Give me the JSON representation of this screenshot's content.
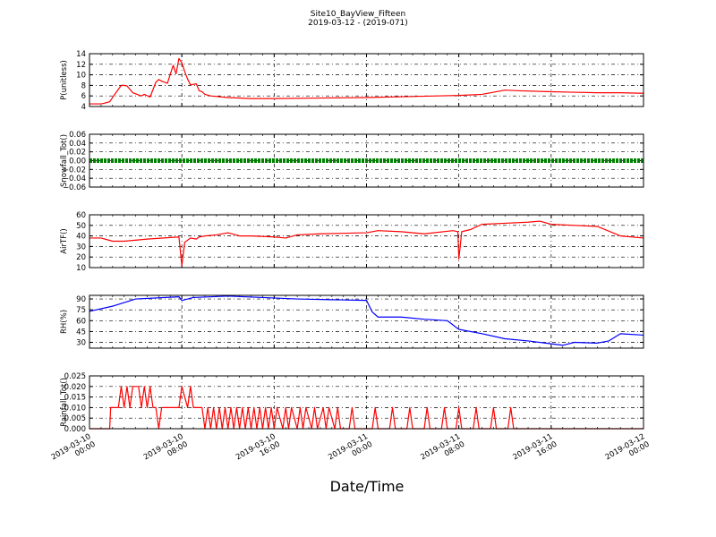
{
  "figure": {
    "title": "Site10_BayView_Fifteen",
    "subtitle": "2019-03-12 - (2019-071)",
    "xlabel": "Date/Time"
  },
  "chart_data": [
    {
      "type": "line",
      "ylabel": "P(unitless)",
      "color": "#ff0000",
      "ylim": [
        4,
        14
      ],
      "yticks": [
        "4",
        "6",
        "8",
        "10",
        "12",
        "14"
      ],
      "xlim": [
        "2019-03-10 00:00",
        "2019-03-12 00:00"
      ],
      "grid": true,
      "series": [
        {
          "x": [
            "2019-03-10 00:00",
            "2019-03-10 01:00",
            "2019-03-10 01:15",
            "2019-03-10 01:45",
            "2019-03-10 02:15",
            "2019-03-10 02:45",
            "2019-03-10 03:00",
            "2019-03-10 03:15",
            "2019-03-10 03:45",
            "2019-03-10 04:15",
            "2019-03-10 04:30",
            "2019-03-10 04:45",
            "2019-03-10 05:15",
            "2019-03-10 05:45",
            "2019-03-10 06:00",
            "2019-03-10 06:15",
            "2019-03-10 06:45",
            "2019-03-10 07:15",
            "2019-03-10 07:30",
            "2019-03-10 07:45",
            "2019-03-10 08:00",
            "2019-03-10 08:15",
            "2019-03-10 08:30",
            "2019-03-10 08:45",
            "2019-03-10 09:15",
            "2019-03-10 09:30",
            "2019-03-10 09:45",
            "2019-03-10 10:00",
            "2019-03-10 10:30",
            "2019-03-10 11:00",
            "2019-03-10 12:00",
            "2019-03-10 14:00",
            "2019-03-10 16:00",
            "2019-03-10 20:00",
            "2019-03-11 00:00",
            "2019-03-11 04:00",
            "2019-03-11 08:00",
            "2019-03-11 10:00",
            "2019-03-11 11:00",
            "2019-03-11 12:00",
            "2019-03-11 13:00",
            "2019-03-11 16:00",
            "2019-03-11 20:00",
            "2019-03-11 22:00",
            "2019-03-12 00:00"
          ],
          "y": [
            4.5,
            4.5,
            4.6,
            4.9,
            6.5,
            8,
            8,
            7.9,
            6.6,
            6.2,
            6.0,
            6.3,
            5.8,
            8.6,
            9.1,
            8.8,
            8.4,
            11.8,
            10.2,
            13.1,
            12.3,
            10.6,
            9.2,
            8.1,
            8.3,
            7.0,
            6.8,
            6.3,
            6.0,
            5.9,
            5.7,
            5.5,
            5.5,
            5.6,
            5.7,
            5.9,
            6.1,
            6.3,
            6.7,
            7.1,
            7.0,
            6.8,
            6.6,
            6.6,
            6.5
          ]
        }
      ]
    },
    {
      "type": "line",
      "ylabel": "Snowfall_Tot()",
      "color": "#008000",
      "ylim": [
        -0.06,
        0.06
      ],
      "yticks": [
        "−0.06",
        "−0.04",
        "−0.02",
        "0.00",
        "0.02",
        "0.04",
        "0.06"
      ],
      "xlim": [
        "2019-03-10 00:00",
        "2019-03-12 00:00"
      ],
      "grid": true,
      "series": [
        {
          "x": [
            "2019-03-10 00:00",
            "2019-03-12 00:00"
          ],
          "y": [
            0,
            0
          ]
        }
      ]
    },
    {
      "type": "line",
      "ylabel": "AirTF()",
      "color": "#ff0000",
      "ylim": [
        10,
        60
      ],
      "yticks": [
        "10",
        "20",
        "30",
        "40",
        "50",
        "60"
      ],
      "xlim": [
        "2019-03-10 00:00",
        "2019-03-12 00:00"
      ],
      "grid": true,
      "series": [
        {
          "x": [
            "2019-03-10 00:00",
            "2019-03-10 01:00",
            "2019-03-10 02:00",
            "2019-03-10 03:00",
            "2019-03-10 05:00",
            "2019-03-10 07:45",
            "2019-03-10 08:00",
            "2019-03-10 08:15",
            "2019-03-10 08:45",
            "2019-03-10 09:15",
            "2019-03-10 09:30",
            "2019-03-10 10:00",
            "2019-03-10 11:00",
            "2019-03-10 12:00",
            "2019-03-10 13:00",
            "2019-03-10 14:00",
            "2019-03-10 16:00",
            "2019-03-10 17:00",
            "2019-03-10 18:00",
            "2019-03-10 20:00",
            "2019-03-11 00:00",
            "2019-03-11 01:00",
            "2019-03-11 03:00",
            "2019-03-11 05:00",
            "2019-03-11 07:30",
            "2019-03-11 07:55",
            "2019-03-11 08:00",
            "2019-03-11 08:15",
            "2019-03-11 09:00",
            "2019-03-11 10:00",
            "2019-03-11 12:00",
            "2019-03-11 14:00",
            "2019-03-11 15:00",
            "2019-03-11 16:00",
            "2019-03-11 18:00",
            "2019-03-11 20:00",
            "2019-03-11 22:00",
            "2019-03-12 00:00"
          ],
          "y": [
            38,
            38,
            35,
            35,
            37,
            39,
            12,
            34,
            38,
            37,
            39,
            40,
            41,
            43,
            40,
            40,
            39,
            38,
            41,
            42,
            43,
            45,
            44,
            42,
            45,
            44,
            18,
            44,
            46,
            51,
            52,
            53,
            54,
            51,
            50,
            49,
            40,
            38
          ]
        }
      ]
    },
    {
      "type": "line",
      "ylabel": "RH(%)",
      "color": "#0000ff",
      "ylim": [
        22,
        95
      ],
      "yticks": [
        "30",
        "45",
        "60",
        "75",
        "90"
      ],
      "xlim": [
        "2019-03-10 00:00",
        "2019-03-12 00:00"
      ],
      "grid": true,
      "series": [
        {
          "x": [
            "2019-03-10 00:00",
            "2019-03-10 02:00",
            "2019-03-10 04:00",
            "2019-03-10 07:45",
            "2019-03-10 08:00",
            "2019-03-10 09:00",
            "2019-03-10 12:00",
            "2019-03-10 15:00",
            "2019-03-10 18:00",
            "2019-03-10 21:00",
            "2019-03-11 00:00",
            "2019-03-11 00:30",
            "2019-03-11 01:00",
            "2019-03-11 03:00",
            "2019-03-11 05:00",
            "2019-03-11 07:00",
            "2019-03-11 08:00",
            "2019-03-11 10:00",
            "2019-03-11 12:00",
            "2019-03-11 14:00",
            "2019-03-11 16:00",
            "2019-03-11 17:00",
            "2019-03-11 18:00",
            "2019-03-11 20:00",
            "2019-03-11 21:00",
            "2019-03-11 22:00",
            "2019-03-12 00:00"
          ],
          "y": [
            73,
            80,
            90,
            93,
            88,
            92,
            94,
            92,
            90,
            89,
            88,
            72,
            65,
            65,
            62,
            60,
            48,
            42,
            35,
            32,
            28,
            26,
            30,
            29,
            32,
            42,
            40
          ]
        }
      ]
    },
    {
      "type": "line",
      "ylabel": "Rainfall_Tot()",
      "color": "#ff0000",
      "ylim": [
        0,
        0.025
      ],
      "yticks": [
        "0.000",
        "0.005",
        "0.010",
        "0.015",
        "0.020",
        "0.025"
      ],
      "xlim": [
        "2019-03-10 00:00",
        "2019-03-12 00:00"
      ],
      "xticks": [
        "2019-03-10 00:00",
        "2019-03-10 08:00",
        "2019-03-10 16:00",
        "2019-03-11 00:00",
        "2019-03-11 08:00",
        "2019-03-11 16:00",
        "2019-03-12 00:00"
      ],
      "grid": true,
      "series": [
        {
          "x": [
            "2019-03-10 00:00",
            "2019-03-10 01:45",
            "2019-03-10 01:50",
            "2019-03-10 02:30",
            "2019-03-10 02:45",
            "2019-03-10 03:00",
            "2019-03-10 03:15",
            "2019-03-10 03:30",
            "2019-03-10 03:45",
            "2019-03-10 04:15",
            "2019-03-10 04:30",
            "2019-03-10 04:45",
            "2019-03-10 05:00",
            "2019-03-10 05:15",
            "2019-03-10 05:30",
            "2019-03-10 05:45",
            "2019-03-10 06:00",
            "2019-03-10 06:15",
            "2019-03-10 07:45",
            "2019-03-10 08:00",
            "2019-03-10 08:30",
            "2019-03-10 08:45",
            "2019-03-10 09:00",
            "2019-03-10 09:45",
            "2019-03-10 10:00",
            "2019-03-10 10:15",
            "2019-03-10 10:30",
            "2019-03-10 10:45",
            "2019-03-10 11:00",
            "2019-03-10 11:15",
            "2019-03-10 11:30",
            "2019-03-10 11:45",
            "2019-03-10 12:00",
            "2019-03-10 12:15",
            "2019-03-10 12:30",
            "2019-03-10 12:45",
            "2019-03-10 13:00",
            "2019-03-10 13:15",
            "2019-03-10 13:30",
            "2019-03-10 13:45",
            "2019-03-10 14:00",
            "2019-03-10 14:15",
            "2019-03-10 14:30",
            "2019-03-10 14:45",
            "2019-03-10 15:00",
            "2019-03-10 15:15",
            "2019-03-10 15:30",
            "2019-03-10 15:45",
            "2019-03-10 16:00",
            "2019-03-10 16:15",
            "2019-03-10 16:45",
            "2019-03-10 17:00",
            "2019-03-10 17:15",
            "2019-03-10 17:30",
            "2019-03-10 18:00",
            "2019-03-10 18:15",
            "2019-03-10 18:30",
            "2019-03-10 18:45",
            "2019-03-10 19:15",
            "2019-03-10 19:30",
            "2019-03-10 19:45",
            "2019-03-10 20:15",
            "2019-03-10 20:30",
            "2019-03-10 20:45",
            "2019-03-10 21:15",
            "2019-03-10 21:30",
            "2019-03-10 21:45",
            "2019-03-10 22:30",
            "2019-03-10 22:45",
            "2019-03-10 23:00",
            "2019-03-11 00:30",
            "2019-03-11 00:45",
            "2019-03-11 01:00",
            "2019-03-11 02:00",
            "2019-03-11 02:15",
            "2019-03-11 02:30",
            "2019-03-11 03:30",
            "2019-03-11 03:45",
            "2019-03-11 04:00",
            "2019-03-11 05:00",
            "2019-03-11 05:15",
            "2019-03-11 05:30",
            "2019-03-11 06:30",
            "2019-03-11 06:45",
            "2019-03-11 07:00",
            "2019-03-11 07:45",
            "2019-03-11 08:00",
            "2019-03-11 08:15",
            "2019-03-11 09:15",
            "2019-03-11 09:30",
            "2019-03-11 09:45",
            "2019-03-11 10:45",
            "2019-03-11 11:00",
            "2019-03-11 11:15",
            "2019-03-11 12:15",
            "2019-03-11 12:30",
            "2019-03-11 12:45",
            "2019-03-12 00:00"
          ],
          "y": [
            0,
            0,
            0.01,
            0.01,
            0.02,
            0.01,
            0.02,
            0.01,
            0.02,
            0.02,
            0.01,
            0.02,
            0.01,
            0.02,
            0.01,
            0.01,
            0,
            0.01,
            0.01,
            0.02,
            0.01,
            0.02,
            0.01,
            0.01,
            0,
            0.01,
            0,
            0.01,
            0,
            0.01,
            0,
            0.01,
            0,
            0.01,
            0,
            0.01,
            0,
            0.01,
            0,
            0.01,
            0,
            0.01,
            0,
            0.01,
            0,
            0.01,
            0,
            0.01,
            0,
            0.01,
            0,
            0.01,
            0,
            0.01,
            0,
            0.01,
            0,
            0.01,
            0,
            0.01,
            0,
            0.01,
            0,
            0.01,
            0,
            0.01,
            0,
            0,
            0.01,
            0,
            0,
            0.01,
            0,
            0,
            0.01,
            0,
            0,
            0.01,
            0,
            0,
            0.01,
            0,
            0,
            0.01,
            0,
            0,
            0.01,
            0,
            0,
            0.01,
            0,
            0,
            0.01,
            0,
            0,
            0.01,
            0,
            0
          ]
        }
      ]
    }
  ]
}
